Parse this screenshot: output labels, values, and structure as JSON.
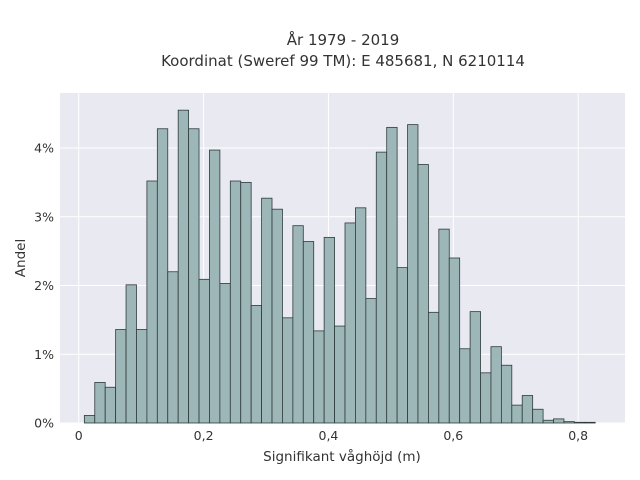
{
  "chart_data": {
    "type": "bar",
    "title_line1": "År 1979 - 2019",
    "title_line2": "Koordinat (Sweref 99 TM): E 485681, N 6210114",
    "xlabel": "Signifikant våghöjd (m)",
    "ylabel": "Andel",
    "xlim": [
      -0.03,
      0.875
    ],
    "ylim": [
      0,
      4.8
    ],
    "x_ticks": [
      0,
      0.2,
      0.4,
      0.6,
      0.8
    ],
    "x_tick_labels": [
      "0",
      "0,2",
      "0,4",
      "0,6",
      "0,8"
    ],
    "y_ticks": [
      0,
      1,
      2,
      3,
      4
    ],
    "y_tick_labels": [
      "0%",
      "1%",
      "2%",
      "3%",
      "4%"
    ],
    "grid": true,
    "bin_width": 0.0167,
    "bin_start": 0.009,
    "values": [
      0.11,
      0.59,
      0.52,
      1.36,
      2.01,
      1.36,
      3.52,
      4.28,
      2.2,
      4.55,
      4.28,
      2.09,
      3.97,
      2.03,
      3.52,
      3.5,
      1.71,
      3.27,
      3.11,
      1.53,
      2.87,
      2.64,
      1.34,
      2.7,
      1.41,
      2.91,
      3.13,
      1.81,
      3.94,
      4.3,
      2.26,
      4.34,
      3.76,
      1.61,
      2.82,
      2.4,
      1.08,
      1.62,
      0.73,
      1.11,
      0.84,
      0.26,
      0.4,
      0.2,
      0.04,
      0.06,
      0.02,
      0.01,
      0.01
    ]
  }
}
